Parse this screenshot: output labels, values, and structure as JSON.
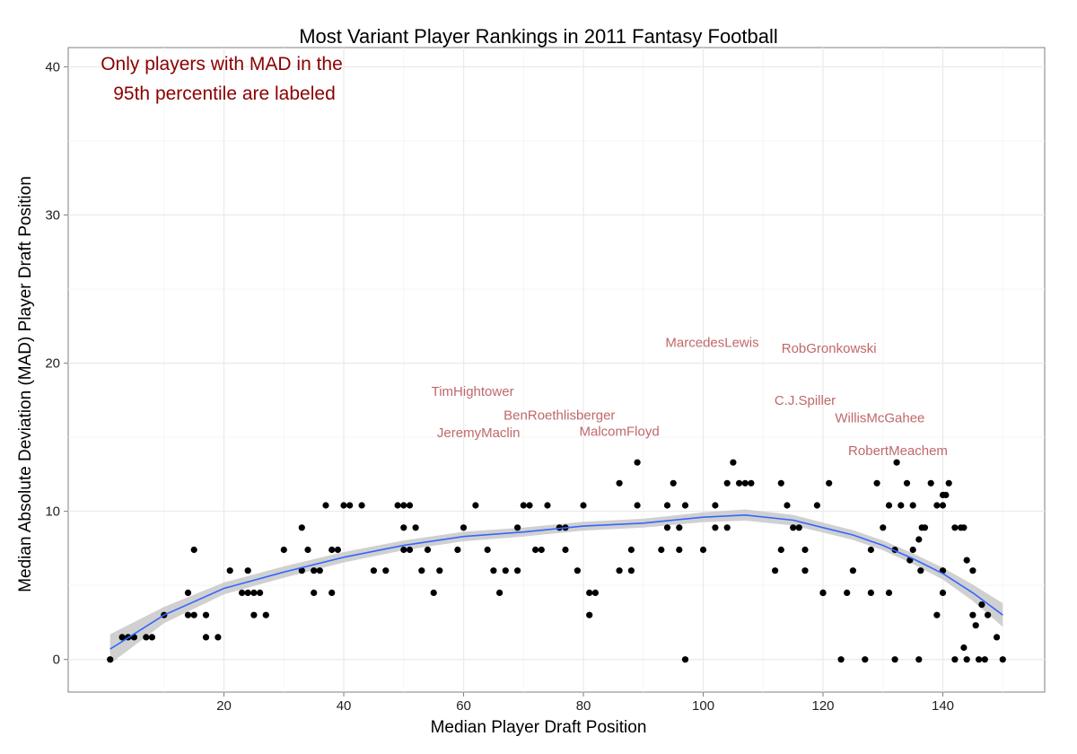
{
  "chart_data": {
    "type": "scatter",
    "title": "Most Variant Player Rankings in 2011 Fantasy Football",
    "xlabel": "Median Player Draft Position",
    "ylabel": "Median Absolute Deviation (MAD) Player Draft Position",
    "xlim": [
      -6,
      157
    ],
    "ylim": [
      -2.2,
      41.3
    ],
    "x_ticks": [
      20,
      40,
      60,
      80,
      100,
      120,
      140
    ],
    "y_ticks": [
      0,
      10,
      20,
      30,
      40
    ],
    "grid": true,
    "annotation": [
      "Only players with MAD in the",
      "95th percentile are labeled"
    ],
    "colors": {
      "points": "#000000",
      "smooth_line": "#3366ff",
      "confidence_band": "#c8c8c8",
      "labels": "#c0686a",
      "annotation": "#8b0000",
      "grid": "#ebebeb",
      "frame": "#7f7f7f"
    },
    "points": [
      [
        1,
        0
      ],
      [
        3,
        1.5
      ],
      [
        4,
        1.5
      ],
      [
        5,
        1.5
      ],
      [
        7,
        1.5
      ],
      [
        8,
        1.5
      ],
      [
        10,
        3
      ],
      [
        14,
        3
      ],
      [
        14,
        4.5
      ],
      [
        15,
        3
      ],
      [
        15,
        7.4
      ],
      [
        17,
        1.5
      ],
      [
        17,
        3
      ],
      [
        19,
        1.5
      ],
      [
        21,
        6
      ],
      [
        23,
        4.5
      ],
      [
        24,
        4.5
      ],
      [
        24,
        6
      ],
      [
        25,
        3
      ],
      [
        25,
        4.5
      ],
      [
        26,
        4.5
      ],
      [
        27,
        3
      ],
      [
        30,
        7.4
      ],
      [
        33,
        6
      ],
      [
        33,
        8.9
      ],
      [
        34,
        7.4
      ],
      [
        35,
        4.5
      ],
      [
        35,
        6
      ],
      [
        36,
        6
      ],
      [
        37,
        10.4
      ],
      [
        38,
        4.5
      ],
      [
        38,
        7.4
      ],
      [
        39,
        7.4
      ],
      [
        40,
        10.4
      ],
      [
        41,
        10.4
      ],
      [
        43,
        10.4
      ],
      [
        45,
        6
      ],
      [
        47,
        6
      ],
      [
        49,
        10.4
      ],
      [
        50,
        7.4
      ],
      [
        50,
        8.9
      ],
      [
        50,
        10.4
      ],
      [
        51,
        7.4
      ],
      [
        51,
        10.4
      ],
      [
        52,
        8.9
      ],
      [
        53,
        6
      ],
      [
        54,
        7.4
      ],
      [
        55,
        4.5
      ],
      [
        56,
        6
      ],
      [
        59,
        7.4
      ],
      [
        60,
        8.9
      ],
      [
        62,
        10.4
      ],
      [
        64,
        7.4
      ],
      [
        65,
        6
      ],
      [
        66,
        4.5
      ],
      [
        67,
        6
      ],
      [
        69,
        6
      ],
      [
        69,
        8.9
      ],
      [
        70,
        10.4
      ],
      [
        71,
        10.4
      ],
      [
        72,
        7.4
      ],
      [
        73,
        7.4
      ],
      [
        74,
        10.4
      ],
      [
        76,
        8.9
      ],
      [
        77,
        7.4
      ],
      [
        77,
        8.9
      ],
      [
        79,
        6
      ],
      [
        80,
        10.4
      ],
      [
        81,
        3
      ],
      [
        81,
        4.5
      ],
      [
        82,
        4.5
      ],
      [
        86,
        6
      ],
      [
        86,
        11.9
      ],
      [
        88,
        6
      ],
      [
        88,
        7.4
      ],
      [
        89,
        10.4
      ],
      [
        89,
        13.3
      ],
      [
        93,
        7.4
      ],
      [
        94,
        8.9
      ],
      [
        94,
        10.4
      ],
      [
        95,
        11.9
      ],
      [
        96,
        7.4
      ],
      [
        96,
        8.9
      ],
      [
        97,
        0
      ],
      [
        97,
        10.4
      ],
      [
        100,
        7.4
      ],
      [
        102,
        8.9
      ],
      [
        102,
        10.4
      ],
      [
        104,
        8.9
      ],
      [
        104,
        11.9
      ],
      [
        105,
        13.3
      ],
      [
        106,
        11.9
      ],
      [
        107,
        11.9
      ],
      [
        108,
        11.9
      ],
      [
        112,
        6
      ],
      [
        113,
        7.4
      ],
      [
        113,
        11.9
      ],
      [
        114,
        10.4
      ],
      [
        115,
        8.9
      ],
      [
        116,
        8.9
      ],
      [
        117,
        6
      ],
      [
        117,
        7.4
      ],
      [
        119,
        10.4
      ],
      [
        120,
        4.5
      ],
      [
        120,
        4.5
      ],
      [
        121,
        11.9
      ],
      [
        123,
        0
      ],
      [
        124,
        4.5
      ],
      [
        125,
        6
      ],
      [
        127,
        0
      ],
      [
        128,
        4.5
      ],
      [
        128,
        7.4
      ],
      [
        129,
        11.9
      ],
      [
        130,
        8.9
      ],
      [
        131,
        4.5
      ],
      [
        131,
        10.4
      ],
      [
        132,
        0
      ],
      [
        132,
        7.4
      ],
      [
        132.3,
        13.3
      ],
      [
        133,
        10.4
      ],
      [
        134,
        11.9
      ],
      [
        134.5,
        6.7
      ],
      [
        135,
        7.4
      ],
      [
        135,
        10.4
      ],
      [
        136,
        0
      ],
      [
        136,
        8.1
      ],
      [
        136.3,
        6
      ],
      [
        136.5,
        8.9
      ],
      [
        137,
        8.9
      ],
      [
        138,
        11.9
      ],
      [
        139,
        3
      ],
      [
        139,
        10.4
      ],
      [
        140,
        4.5
      ],
      [
        140,
        6
      ],
      [
        140,
        10.4
      ],
      [
        140,
        11.1
      ],
      [
        140.5,
        11.1
      ],
      [
        141,
        11.9
      ],
      [
        142,
        0
      ],
      [
        142,
        8.9
      ],
      [
        143,
        8.9
      ],
      [
        143.5,
        0.8
      ],
      [
        143.5,
        8.9
      ],
      [
        144,
        0
      ],
      [
        144,
        6.7
      ],
      [
        145,
        3
      ],
      [
        145,
        6
      ],
      [
        145.5,
        2.3
      ],
      [
        146,
        0
      ],
      [
        146.5,
        3.7
      ],
      [
        147,
        0
      ],
      [
        147.5,
        3
      ],
      [
        149,
        1.5
      ],
      [
        150,
        0
      ]
    ],
    "smooth": {
      "x": [
        1,
        10,
        20,
        30,
        40,
        50,
        60,
        70,
        80,
        90,
        100,
        107,
        115,
        120,
        125,
        130,
        135,
        140,
        145,
        150
      ],
      "y": [
        0.7,
        3.0,
        4.8,
        5.9,
        6.9,
        7.7,
        8.3,
        8.6,
        9.0,
        9.2,
        9.6,
        9.75,
        9.4,
        8.9,
        8.4,
        7.7,
        6.8,
        5.8,
        4.5,
        3.0
      ],
      "se": [
        1.0,
        0.55,
        0.4,
        0.38,
        0.35,
        0.33,
        0.32,
        0.3,
        0.3,
        0.3,
        0.33,
        0.38,
        0.36,
        0.33,
        0.33,
        0.33,
        0.36,
        0.4,
        0.55,
        0.8
      ]
    },
    "labels": [
      {
        "text": "TimHightower",
        "x": 61.5,
        "y": 17.8
      },
      {
        "text": "BenRoethlisberger",
        "x": 76,
        "y": 16.2
      },
      {
        "text": "JeremyMaclin",
        "x": 62.5,
        "y": 15.0
      },
      {
        "text": "MalcomFloyd",
        "x": 86,
        "y": 15.1
      },
      {
        "text": "MarcedesLewis",
        "x": 101.5,
        "y": 21.1
      },
      {
        "text": "RobGronkowski",
        "x": 121,
        "y": 20.7
      },
      {
        "text": "C.J.Spiller",
        "x": 117,
        "y": 17.2
      },
      {
        "text": "WillisMcGahee",
        "x": 129.5,
        "y": 16.0
      },
      {
        "text": "RobertMeachem",
        "x": 132.5,
        "y": 13.8
      }
    ]
  }
}
